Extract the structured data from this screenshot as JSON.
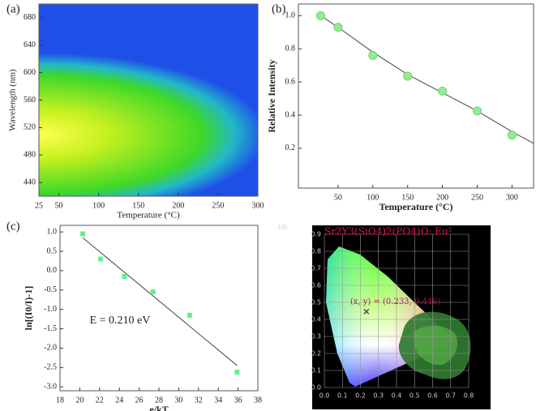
{
  "chart_data": [
    {
      "type": "heatmap",
      "panel_label": "(a)",
      "x_label": "Temperature (°C)",
      "y_label": "Wavelength (nm)",
      "xlim": [
        25,
        300
      ],
      "ylim": [
        420,
        700
      ],
      "xticks": [
        25,
        50,
        100,
        150,
        200,
        250,
        300
      ],
      "yticks": [
        440,
        480,
        520,
        560,
        600,
        640,
        680
      ]
    },
    {
      "type": "scatter",
      "panel_label": "(b)",
      "x_label": "Temperature (°C)",
      "y_label": "Relative Intensity",
      "xlim": [
        -7,
        331
      ],
      "ylim": [
        -0.04,
        1.07
      ],
      "xticks": [
        50,
        100,
        150,
        200,
        250,
        300
      ],
      "yticks": [
        0.2,
        0.4,
        0.6,
        0.8,
        {
          "value": 1,
          "label": "1.0"
        }
      ],
      "series": [
        {
          "style": "line",
          "color": "#444444",
          "x": [
            25,
            50,
            100,
            150,
            200,
            250,
            300,
            331
          ],
          "values": [
            1.0,
            0.93,
            0.78,
            0.645,
            0.535,
            0.425,
            0.3,
            0.23
          ]
        },
        {
          "style": "marker",
          "color": "#90ee90",
          "x": [
            25,
            50,
            100,
            150,
            200,
            250,
            300
          ],
          "values": [
            1.0,
            0.93,
            0.76,
            0.635,
            0.545,
            0.425,
            0.28
          ]
        }
      ]
    },
    {
      "type": "scatter",
      "panel_label": "(c)",
      "x_label": "e/kT",
      "y_label": "ln[(I0/I)-1]",
      "annotation": "E = 0.210 eV",
      "xlim": [
        18,
        38
      ],
      "ylim": [
        -3.1,
        1.17
      ],
      "xticks": [
        18,
        20,
        22,
        24,
        26,
        28,
        30,
        32,
        34,
        36,
        38
      ],
      "yticks": [
        {
          "value": -3,
          "label": "-3.0"
        },
        -2.5,
        {
          "value": -2,
          "label": "-2.0"
        },
        -1.5,
        {
          "value": -1,
          "label": "-1.0"
        },
        -0.5,
        {
          "value": 0,
          "label": "0.0"
        },
        0.5,
        {
          "value": 1,
          "label": "1.0"
        }
      ],
      "series": [
        {
          "style": "line",
          "color": "#444444",
          "x": [
            20.3,
            35.9
          ],
          "values": [
            0.85,
            -2.45
          ]
        },
        {
          "style": "square",
          "color": "#66ee88",
          "x": [
            20.3,
            22.1,
            24.5,
            27.4,
            31.1,
            35.9
          ],
          "values": [
            0.95,
            0.3,
            -0.15,
            -0.55,
            -1.15,
            -2.62
          ]
        }
      ]
    },
    {
      "type": "chromaticity",
      "panel_label": "(d)",
      "title": "Sr2Y3(SiO4)2(PO4)O: Eu²",
      "annotation": "(x, y) = (0.233, 0.446)",
      "xlim": [
        0,
        0.8
      ],
      "ylim": [
        0,
        0.9
      ],
      "xticks": [
        {
          "value": 0,
          "label": "0.0"
        },
        0.1,
        0.2,
        0.3,
        0.4,
        0.5,
        0.6,
        0.7,
        0.8
      ],
      "yticks": [
        {
          "value": 0,
          "label": "0.0"
        },
        0.1,
        0.2,
        0.3,
        0.4,
        0.5,
        0.6,
        0.7,
        0.8,
        0.9
      ],
      "point": {
        "x": 0.233,
        "y": 0.446
      }
    }
  ]
}
